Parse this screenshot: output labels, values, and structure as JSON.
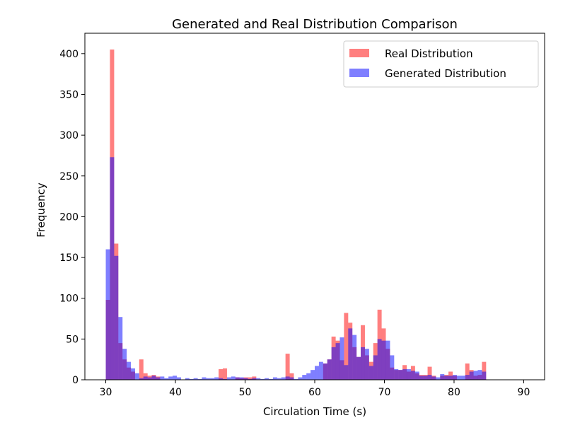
{
  "chart_data": {
    "type": "histogram",
    "title": "Generated and Real Distribution Comparison",
    "xlabel": "Circulation Time (s)",
    "ylabel": "Frequency",
    "xlim": [
      27,
      93
    ],
    "ylim": [
      0,
      425
    ],
    "xticks": [
      30,
      40,
      50,
      60,
      70,
      80,
      90
    ],
    "yticks": [
      0,
      50,
      100,
      150,
      200,
      250,
      300,
      350,
      400
    ],
    "bin_start": 30,
    "bin_width": 0.6,
    "legend": {
      "position": "top-right"
    },
    "series": [
      {
        "name": "Real Distribution",
        "color": "#ff0000",
        "alpha": 0.5,
        "values": [
          98,
          405,
          167,
          45,
          25,
          15,
          10,
          0,
          25,
          8,
          5,
          6,
          4,
          0,
          0,
          0,
          0,
          0,
          0,
          0,
          0,
          0,
          0,
          0,
          0,
          0,
          0,
          13,
          14,
          0,
          0,
          3,
          2,
          3,
          3,
          4,
          0,
          0,
          0,
          0,
          0,
          0,
          0,
          32,
          8,
          0,
          0,
          0,
          0,
          0,
          0,
          0,
          20,
          25,
          53,
          48,
          24,
          82,
          70,
          40,
          28,
          67,
          30,
          22,
          45,
          86,
          63,
          38,
          15,
          12,
          12,
          18,
          10,
          17,
          8,
          6,
          6,
          16,
          5,
          0,
          5,
          6,
          10,
          5,
          0,
          0,
          20,
          12,
          5,
          6,
          22
        ]
      },
      {
        "name": "Generated Distribution",
        "color": "#0000ff",
        "alpha": 0.5,
        "values": [
          160,
          273,
          152,
          77,
          38,
          22,
          14,
          8,
          2,
          4,
          3,
          5,
          3,
          4,
          2,
          4,
          5,
          3,
          0,
          2,
          1,
          2,
          1,
          3,
          2,
          2,
          3,
          2,
          1,
          3,
          4,
          3,
          3,
          2,
          1,
          2,
          2,
          1,
          2,
          1,
          3,
          2,
          3,
          4,
          3,
          1,
          3,
          6,
          8,
          12,
          17,
          22,
          20,
          25,
          40,
          45,
          52,
          18,
          63,
          55,
          28,
          40,
          38,
          17,
          30,
          50,
          48,
          48,
          30,
          13,
          12,
          13,
          13,
          11,
          10,
          5,
          5,
          6,
          4,
          3,
          7,
          5,
          5,
          6,
          5,
          5,
          6,
          10,
          11,
          12,
          10
        ]
      }
    ]
  }
}
